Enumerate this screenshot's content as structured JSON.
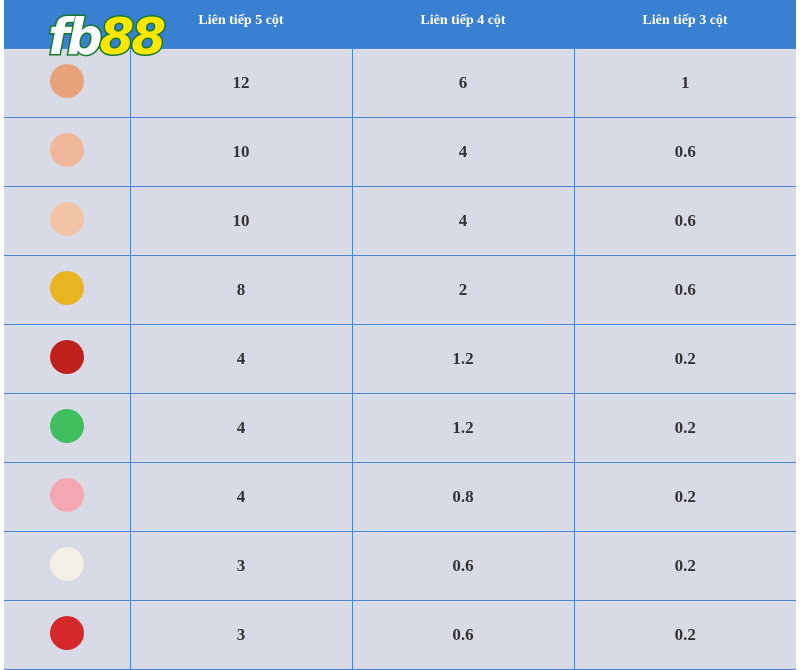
{
  "logo": {
    "text_fb": "fb",
    "text_88": "88"
  },
  "headers": [
    "",
    "Liên tiếp 5 cột",
    "Liên tiếp 4 cột",
    "Liên tiếp 3 cột"
  ],
  "rows": [
    {
      "icon": "god-of-wealth-icon",
      "color": "#e8a27a",
      "c5": "12",
      "c4": "6",
      "c3": "1"
    },
    {
      "icon": "laughing-buddha-icon",
      "color": "#f0b79a",
      "c5": "10",
      "c4": "4",
      "c3": "0.6"
    },
    {
      "icon": "old-man-blue-hat-icon",
      "color": "#f2c3a4",
      "c5": "10",
      "c4": "4",
      "c3": "0.6"
    },
    {
      "icon": "golden-carp-icon",
      "color": "#e8b420",
      "c5": "8",
      "c4": "2",
      "c3": "0.6"
    },
    {
      "icon": "red-money-bag-icon",
      "color": "#c0201c",
      "c5": "4",
      "c4": "1.2",
      "c3": "0.2"
    },
    {
      "icon": "jade-ruyi-icon",
      "color": "#3fbf5e",
      "c5": "4",
      "c4": "1.2",
      "c3": "0.2"
    },
    {
      "icon": "peach-icon",
      "color": "#f4a6b2",
      "c5": "4",
      "c4": "0.8",
      "c3": "0.2"
    },
    {
      "icon": "steamed-bun-icon",
      "color": "#f3efe6",
      "c5": "3",
      "c4": "0.6",
      "c3": "0.2"
    },
    {
      "icon": "candied-hawthorn-icon",
      "color": "#d4282a",
      "c5": "3",
      "c4": "0.6",
      "c3": "0.2"
    }
  ]
}
